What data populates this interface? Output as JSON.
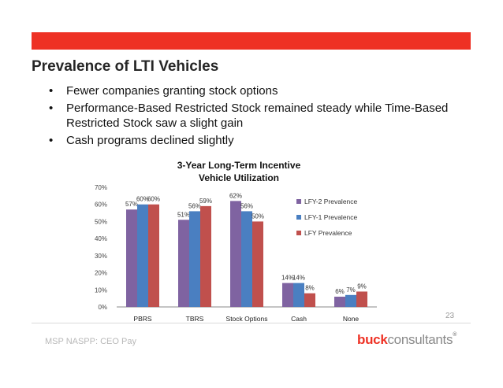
{
  "slide": {
    "title": "Prevalence of LTI Vehicles",
    "bullets": [
      "Fewer companies granting stock options",
      "Performance-Based Restricted Stock remained steady while Time-Based Restricted Stock saw a slight gain",
      "Cash programs declined slightly"
    ],
    "page_number": "23",
    "footer_text": "MSP NASPP: CEO Pay",
    "logo": {
      "part1": "buck",
      "part2": "consultants",
      "mark": "®"
    }
  },
  "colors": {
    "header_bar": "#ee3124",
    "series": [
      "#7f63a1",
      "#4a7fc1",
      "#c0504d"
    ]
  },
  "chart_data": {
    "type": "bar",
    "title_lines": [
      "3-Year Long-Term Incentive",
      "Vehicle Utilization"
    ],
    "categories": [
      "PBRS",
      "TBRS",
      "Stock Options",
      "Cash",
      "None"
    ],
    "series": [
      {
        "name": "LFY-2 Prevalence",
        "values": [
          57,
          51,
          62,
          14,
          6
        ]
      },
      {
        "name": "LFY-1 Prevalence",
        "values": [
          60,
          56,
          56,
          14,
          7
        ]
      },
      {
        "name": "LFY Prevalence",
        "values": [
          60,
          59,
          50,
          8,
          9
        ]
      }
    ],
    "ylim": [
      0,
      70
    ],
    "yticks": [
      "0%",
      "10%",
      "20%",
      "30%",
      "40%",
      "50%",
      "60%",
      "70%"
    ],
    "value_labels": [
      [
        "57%",
        "51%",
        "62%",
        "14%",
        "6%"
      ],
      [
        "60%",
        "56%",
        "56%",
        "14%",
        "7%"
      ],
      [
        "60%",
        "59%",
        "50%",
        "8%",
        "9%"
      ]
    ],
    "grid": false,
    "legend_position": "right"
  }
}
